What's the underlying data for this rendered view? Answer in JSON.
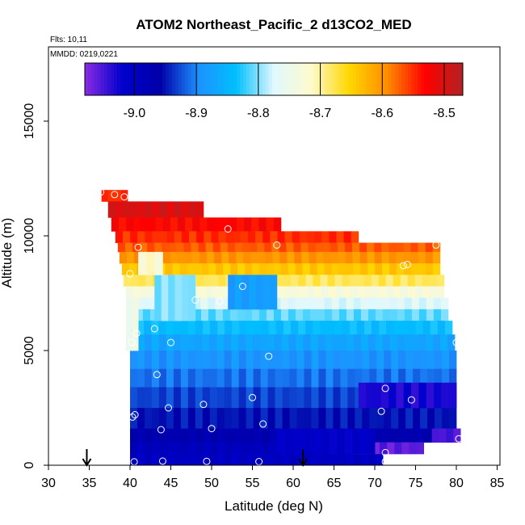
{
  "chart_data": {
    "type": "heatmap",
    "title": "ATOM2 Northeast_Pacific_2 d13CO2_MED",
    "flights_label": "Flts: 10,11",
    "date_label": "MMDD: 0219,0221",
    "xlabel": "Latitude (deg N)",
    "ylabel": "Altitude (m)",
    "xlim": [
      30,
      85
    ],
    "ylim": [
      0,
      17500
    ],
    "x_ticks": [
      30,
      35,
      40,
      45,
      50,
      55,
      60,
      65,
      70,
      75,
      80,
      85
    ],
    "y_ticks": [
      0,
      5000,
      10000,
      15000
    ],
    "colorbar": {
      "range": [
        -9.08,
        -8.47
      ],
      "ticks": [
        -9.0,
        -8.9,
        -8.8,
        -8.7,
        -8.6,
        -8.5
      ],
      "tick_labels": [
        "-9.0",
        "-8.9",
        "-8.8",
        "-8.7",
        "-8.6",
        "-8.5"
      ],
      "colors": [
        "#8a2be2",
        "#0000cd",
        "#0000a8",
        "#1e90ff",
        "#00bfff",
        "#e0f8ff",
        "#fffacd",
        "#ffd700",
        "#ff8c00",
        "#ff0000",
        "#b22222"
      ]
    },
    "bands": [
      {
        "alt": [
          11500,
          12000
        ],
        "lat": [
          36.5,
          39.7
        ],
        "value": -8.55
      },
      {
        "alt": [
          10800,
          11500
        ],
        "lat": [
          37.3,
          49.0
        ],
        "value": -8.5
      },
      {
        "alt": [
          10200,
          10800
        ],
        "lat": [
          37.7,
          58.5
        ],
        "value": -8.53
      },
      {
        "alt": [
          9700,
          10200
        ],
        "lat": [
          38.2,
          68.0
        ],
        "value": -8.55
      },
      {
        "alt": [
          9300,
          9700
        ],
        "lat": [
          38.5,
          78.0
        ],
        "value": -8.57
      },
      {
        "alt": [
          8800,
          9300
        ],
        "lat": [
          38.7,
          78.0
        ],
        "value": -8.6
      },
      {
        "alt": [
          8300,
          8800
        ],
        "lat": [
          39.0,
          78.0
        ],
        "value": -8.64
      },
      {
        "alt": [
          7800,
          8300
        ],
        "lat": [
          39.2,
          78.5
        ],
        "value": -8.68
      },
      {
        "alt": [
          7300,
          7800
        ],
        "lat": [
          39.5,
          78.5
        ],
        "value": -8.73
      },
      {
        "alt": [
          6800,
          7300
        ],
        "lat": [
          39.7,
          79.0
        ],
        "value": -8.77
      },
      {
        "alt": [
          6300,
          6800
        ],
        "lat": [
          39.8,
          79.0
        ],
        "value": -8.81
      },
      {
        "alt": [
          5700,
          6300
        ],
        "lat": [
          39.9,
          79.5
        ],
        "value": -8.84
      },
      {
        "alt": [
          5000,
          5700
        ],
        "lat": [
          40.0,
          79.8
        ],
        "value": -8.87
      },
      {
        "alt": [
          4200,
          5000
        ],
        "lat": [
          40.0,
          80.0
        ],
        "value": -8.89
      },
      {
        "alt": [
          3400,
          4200
        ],
        "lat": [
          40.0,
          80.0
        ],
        "value": -8.91
      },
      {
        "alt": [
          2500,
          3400
        ],
        "lat": [
          40.0,
          80.0
        ],
        "value": -8.93
      },
      {
        "alt": [
          1600,
          2500
        ],
        "lat": [
          40.0,
          80.0
        ],
        "value": -8.95
      },
      {
        "alt": [
          1000,
          1600
        ],
        "lat": [
          40.0,
          80.5
        ],
        "value": -8.97
      },
      {
        "alt": [
          500,
          1000
        ],
        "lat": [
          40.0,
          76.0
        ],
        "value": -8.99
      },
      {
        "alt": [
          0,
          500
        ],
        "lat": [
          40.0,
          71.0
        ],
        "value": -9.0
      }
    ],
    "patches": [
      {
        "alt": [
          500,
          1000
        ],
        "lat": [
          67.0,
          76.0
        ],
        "value": -9.06
      },
      {
        "alt": [
          1000,
          1600
        ],
        "lat": [
          77.0,
          80.5
        ],
        "value": -9.05
      },
      {
        "alt": [
          2500,
          3600
        ],
        "lat": [
          68.0,
          80.0
        ],
        "value": -9.03
      },
      {
        "alt": [
          500,
          1600
        ],
        "lat": [
          58.0,
          70.0
        ],
        "value": -9.01
      },
      {
        "alt": [
          6300,
          8300
        ],
        "lat": [
          43.0,
          48.0
        ],
        "value": -8.8
      },
      {
        "alt": [
          6800,
          8300
        ],
        "lat": [
          52.0,
          58.0
        ],
        "value": -8.88
      },
      {
        "alt": [
          8300,
          9300
        ],
        "lat": [
          41.0,
          44.0
        ],
        "value": -8.72
      },
      {
        "alt": [
          5000,
          7300
        ],
        "lat": [
          39.5,
          41.0
        ],
        "value": -8.75
      }
    ],
    "points": [
      {
        "lat": 36.4,
        "alt": 11900
      },
      {
        "lat": 38.1,
        "alt": 11800
      },
      {
        "lat": 39.3,
        "alt": 11700
      },
      {
        "lat": 41.0,
        "alt": 9500
      },
      {
        "lat": 40.0,
        "alt": 8350
      },
      {
        "lat": 52.0,
        "alt": 10300
      },
      {
        "lat": 58.0,
        "alt": 9600
      },
      {
        "lat": 77.5,
        "alt": 9600
      },
      {
        "lat": 73.5,
        "alt": 8700
      },
      {
        "lat": 74.0,
        "alt": 8750
      },
      {
        "lat": 53.8,
        "alt": 7800
      },
      {
        "lat": 48.0,
        "alt": 7200
      },
      {
        "lat": 51.0,
        "alt": 7150
      },
      {
        "lat": 43.0,
        "alt": 5950
      },
      {
        "lat": 40.8,
        "alt": 5750
      },
      {
        "lat": 40.2,
        "alt": 5350
      },
      {
        "lat": 45.0,
        "alt": 5350
      },
      {
        "lat": 57.0,
        "alt": 4750
      },
      {
        "lat": 80.0,
        "alt": 5350
      },
      {
        "lat": 43.3,
        "alt": 3950
      },
      {
        "lat": 71.3,
        "alt": 3350
      },
      {
        "lat": 55.0,
        "alt": 2950
      },
      {
        "lat": 74.5,
        "alt": 2850
      },
      {
        "lat": 49.0,
        "alt": 2650
      },
      {
        "lat": 44.7,
        "alt": 2500
      },
      {
        "lat": 70.8,
        "alt": 2350
      },
      {
        "lat": 40.6,
        "alt": 2200
      },
      {
        "lat": 40.3,
        "alt": 2100
      },
      {
        "lat": 56.3,
        "alt": 1800
      },
      {
        "lat": 50.0,
        "alt": 1600
      },
      {
        "lat": 43.8,
        "alt": 1550
      },
      {
        "lat": 80.3,
        "alt": 1150
      },
      {
        "lat": 71.3,
        "alt": 550
      },
      {
        "lat": 40.5,
        "alt": 150
      },
      {
        "lat": 44.0,
        "alt": 180
      },
      {
        "lat": 49.4,
        "alt": 170
      },
      {
        "lat": 55.8,
        "alt": 160
      },
      {
        "lat": 71.3,
        "alt": 150
      }
    ],
    "arrows": [
      34.7,
      61.2
    ],
    "grid": false,
    "legend": "colorbar-top"
  }
}
